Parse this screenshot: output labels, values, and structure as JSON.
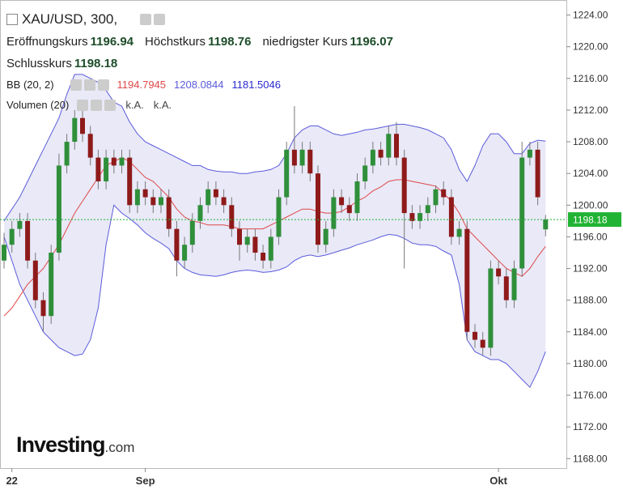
{
  "chart_data": {
    "type": "candlestick",
    "title": "XAU/USD, 300,",
    "open_label": "Eröffnungskurs",
    "high_label": "Höchstkurs",
    "low_label": "niedrigster Kurs",
    "close_label": "Schlusskurs",
    "indicator_label": "BB (20, 2)",
    "volume_label": "Volumen (20)",
    "volume_values": [
      "k.A.",
      "k.A."
    ],
    "logo": "Investing",
    "logo_suffix": ".com",
    "categories": [
      null,
      "22",
      null,
      null,
      null,
      null,
      null,
      null,
      null,
      null,
      null,
      null,
      null,
      null,
      null,
      null,
      null,
      null,
      "Sep",
      null,
      null,
      null,
      null,
      null,
      null,
      null,
      null,
      null,
      null,
      null,
      null,
      null,
      null,
      null,
      null,
      null,
      null,
      null,
      null,
      null,
      null,
      null,
      null,
      null,
      null,
      null,
      null,
      null,
      null,
      null,
      null,
      null,
      null,
      null,
      null,
      null,
      null,
      null,
      null,
      null,
      null,
      null,
      null,
      "Okt",
      null,
      null,
      null,
      null,
      null,
      null
    ],
    "open": [
      1193,
      1195,
      1197,
      1198,
      1193,
      1188,
      1186,
      1194,
      1205,
      1208,
      1211,
      1209,
      1206,
      1203,
      1206,
      1205,
      1206,
      1200,
      1202,
      1201,
      1200,
      1201,
      1197,
      1193,
      1195,
      1198,
      1200,
      1202,
      1201,
      1200,
      1197,
      1195,
      1196,
      1194,
      1193,
      1196,
      1201,
      1207,
      1205,
      1207,
      1204,
      1195,
      1197,
      1201,
      1200,
      1199,
      1203,
      1205,
      1207,
      1206,
      1209,
      1206,
      1199,
      1198,
      1199,
      1200,
      1202,
      1201,
      1196,
      1197,
      1184,
      1183,
      1182,
      1192,
      1191,
      1188,
      1192,
      1206,
      1207,
      1196.94
    ],
    "high": [
      1196.5,
      1198,
      1199,
      1199,
      1194,
      1189,
      1195,
      1206.5,
      1209,
      1212,
      1212,
      1210,
      1207,
      1207,
      1207,
      1207,
      1207,
      1203,
      1203,
      1202,
      1202,
      1202,
      1198,
      1196,
      1199,
      1201,
      1203,
      1203,
      1202,
      1201,
      1198,
      1197,
      1197,
      1195,
      1197,
      1202,
      1208,
      1212.5,
      1208,
      1208,
      1205,
      1198,
      1202,
      1202,
      1201,
      1204,
      1206,
      1208,
      1208,
      1210,
      1210.5,
      1207,
      1200,
      1200,
      1201,
      1202.5,
      1203,
      1202,
      1198,
      1198,
      1185,
      1184,
      1193,
      1193,
      1192,
      1193,
      1208,
      1208,
      1208,
      1198.76
    ],
    "low": [
      1192,
      1194,
      1196,
      1192,
      1187,
      1184,
      1185,
      1193,
      1204,
      1207,
      1208,
      1205,
      1202,
      1202,
      1204,
      1204,
      1199,
      1199,
      1200,
      1199,
      1199,
      1196,
      1191,
      1192,
      1194,
      1197,
      1199,
      1200,
      1199,
      1196,
      1193,
      1194,
      1193,
      1192,
      1192,
      1195,
      1200,
      1204,
      1204,
      1203,
      1194,
      1194,
      1196,
      1199,
      1198,
      1198,
      1202,
      1204,
      1205,
      1205,
      1205,
      1192,
      1197,
      1197,
      1198,
      1199,
      1200,
      1195,
      1195,
      1183,
      1182,
      1181,
      1181,
      1190,
      1187,
      1187,
      1191,
      1205,
      1200,
      1196.07
    ],
    "close": [
      1195,
      1197,
      1198,
      1193,
      1188,
      1186,
      1194,
      1205,
      1208,
      1211,
      1209,
      1206,
      1203,
      1206,
      1205,
      1206,
      1200,
      1202,
      1201,
      1200,
      1201,
      1197,
      1193,
      1195,
      1198,
      1200,
      1202,
      1201,
      1200,
      1197,
      1195,
      1196,
      1194,
      1193,
      1196,
      1201,
      1207,
      1205,
      1207,
      1204,
      1195,
      1197,
      1201,
      1200,
      1199,
      1203,
      1205,
      1207,
      1206,
      1209,
      1206,
      1199,
      1198,
      1199,
      1200,
      1202,
      1201,
      1196,
      1197,
      1184,
      1183,
      1182,
      1192,
      1191,
      1188,
      1192,
      1206,
      1207,
      1201,
      1198.18
    ],
    "bb_upper": [
      1198,
      1199.5,
      1201,
      1203,
      1205,
      1207,
      1209,
      1211,
      1214,
      1216.5,
      1216.5,
      1216,
      1215.5,
      1214.5,
      1213,
      1212.5,
      1210.5,
      1209,
      1208,
      1207.5,
      1207,
      1206.5,
      1206,
      1205.5,
      1205,
      1205,
      1204.5,
      1204.3,
      1204.2,
      1204.2,
      1204,
      1204,
      1204.2,
      1204.3,
      1204.5,
      1205,
      1206.5,
      1208.5,
      1209.5,
      1210,
      1210,
      1209.5,
      1209,
      1208.8,
      1209,
      1209.2,
      1209.5,
      1209.6,
      1209.8,
      1210,
      1210.2,
      1210.2,
      1210,
      1209.8,
      1209.5,
      1209,
      1208.5,
      1207,
      1204.5,
      1203,
      1205,
      1207.5,
      1209,
      1209,
      1208,
      1206.5,
      1206.5,
      1207.8,
      1208.2,
      1208.0844
    ],
    "bb_middle": [
      1186,
      1187,
      1188.5,
      1190,
      1191,
      1192,
      1193.5,
      1195,
      1197,
      1199,
      1200.5,
      1202,
      1203.5,
      1205,
      1205.5,
      1206,
      1205.5,
      1204.5,
      1203.5,
      1203,
      1202,
      1201,
      1199.5,
      1198.5,
      1198,
      1197.8,
      1197.5,
      1197.5,
      1197.5,
      1197.3,
      1197,
      1197,
      1197,
      1197,
      1197.5,
      1198,
      1198.5,
      1199,
      1199.5,
      1199.5,
      1199.2,
      1199,
      1199,
      1199.2,
      1199.8,
      1200.5,
      1201,
      1201.8,
      1202.3,
      1203,
      1203.2,
      1203.2,
      1203,
      1202.8,
      1202.6,
      1202.4,
      1201.5,
      1200.5,
      1199,
      1197,
      1196,
      1195,
      1194,
      1193,
      1192,
      1191.5,
      1191,
      1192,
      1193.5,
      1194.7945
    ],
    "bb_lower": [
      1196,
      1193,
      1190,
      1188,
      1186,
      1184,
      1183,
      1182,
      1181.5,
      1181,
      1181.2,
      1183,
      1187,
      1195,
      1200,
      1199,
      1198.3,
      1197.5,
      1196.5,
      1195.8,
      1195.2,
      1194.5,
      1193,
      1192,
      1191.5,
      1191.2,
      1191.1,
      1191,
      1191.2,
      1191.5,
      1191.7,
      1191.8,
      1191.7,
      1191.5,
      1191.6,
      1191.8,
      1192.2,
      1193,
      1193.5,
      1193.7,
      1193.5,
      1193.7,
      1194,
      1194.3,
      1194.6,
      1195,
      1195.3,
      1195.6,
      1196,
      1196.3,
      1196.2,
      1195.8,
      1195.2,
      1195,
      1195,
      1194.8,
      1194.2,
      1193.7,
      1190,
      1183,
      1181.5,
      1181,
      1180.5,
      1180.5,
      1180,
      1179,
      1178,
      1177,
      1179,
      1181.5046
    ],
    "up_color": "#2f8f3a",
    "down_color": "#8e1a1a",
    "upper_color": "#5b5bdb",
    "middle_color": "#e04848",
    "lower_color": "#2a2ad0",
    "band_color": "#e4e4f6",
    "price_color": "#21b333",
    "ylim": [
      1166.8,
      1225.9
    ],
    "yticks": [
      {
        "value": 1168,
        "label": "1168.00"
      },
      {
        "value": 1172,
        "label": "1172.00"
      },
      {
        "value": 1176,
        "label": "1176.00"
      },
      {
        "value": 1180,
        "label": "1180.00"
      },
      {
        "value": 1184,
        "label": "1184.00"
      },
      {
        "value": 1188,
        "label": "1188.00"
      },
      {
        "value": 1192,
        "label": "1192.00"
      },
      {
        "value": 1196,
        "label": "1196.00"
      },
      {
        "value": 1200,
        "label": "1200.00"
      },
      {
        "value": 1204,
        "label": "1204.00"
      },
      {
        "value": 1208,
        "label": "1208.00"
      },
      {
        "value": 1212,
        "label": "1212.00"
      },
      {
        "value": 1216,
        "label": "1216.00"
      },
      {
        "value": 1220,
        "label": "1220.00"
      },
      {
        "value": 1224,
        "label": "1224.00"
      }
    ]
  }
}
